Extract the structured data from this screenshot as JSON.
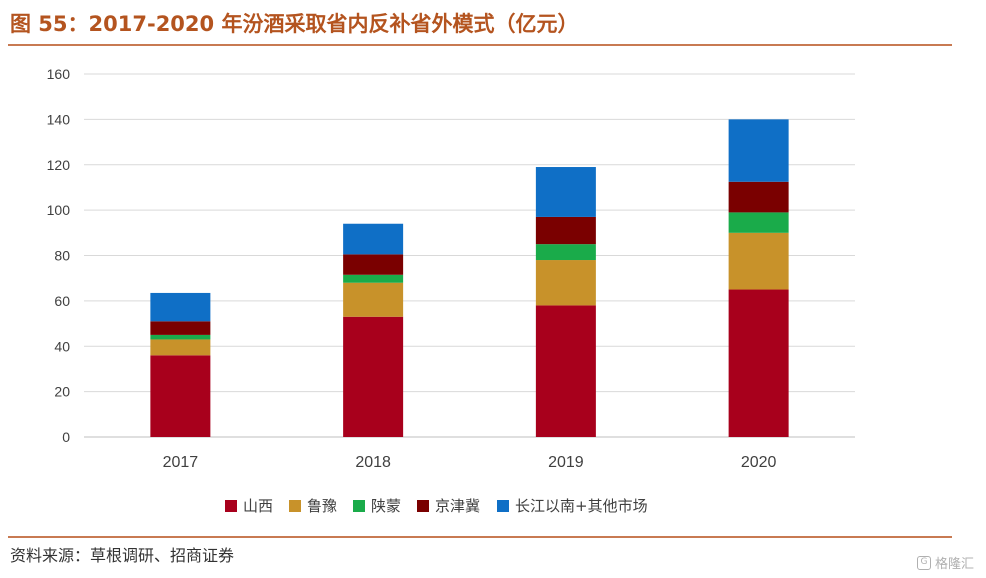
{
  "header": {
    "title": "图 55：2017-2020 年汾酒采取省内反补省外模式（亿元）"
  },
  "footer": {
    "source": "资料来源：草根调研、招商证券"
  },
  "watermark": {
    "text": "格隆汇",
    "glyph": "G"
  },
  "colors": {
    "series": [
      "#a8001c",
      "#c8922a",
      "#1aab4a",
      "#7a0000",
      "#0f6fc6"
    ],
    "grid": "#d9d9d9",
    "title": "#b4541f"
  },
  "chart_data": {
    "type": "bar",
    "stacked": true,
    "title": "2017-2020 年汾酒采取省内反补省外模式（亿元）",
    "xlabel": "",
    "ylabel": "",
    "categories": [
      "2017",
      "2018",
      "2019",
      "2020"
    ],
    "ylim": [
      0,
      160
    ],
    "yticks": [
      0,
      20,
      40,
      60,
      80,
      100,
      120,
      140,
      160
    ],
    "grid": true,
    "legend_position": "bottom",
    "series": [
      {
        "name": "山西",
        "values": [
          36,
          53,
          58,
          65
        ]
      },
      {
        "name": "鲁豫",
        "values": [
          7,
          15,
          20,
          25
        ]
      },
      {
        "name": "陕蒙",
        "values": [
          2,
          3.5,
          7,
          9
        ]
      },
      {
        "name": "京津冀",
        "values": [
          6,
          9,
          12,
          13.5
        ]
      },
      {
        "name": "长江以南+其他市场",
        "values": [
          12.5,
          13.5,
          22,
          27.5
        ]
      }
    ]
  }
}
